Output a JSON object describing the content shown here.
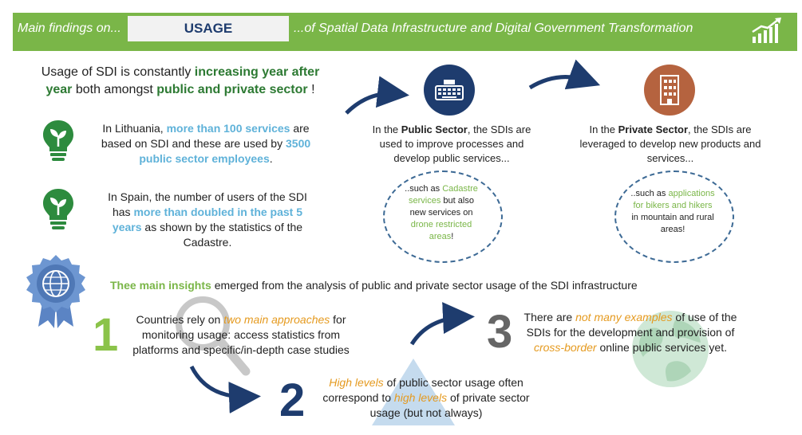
{
  "banner": {
    "prefix": "Main findings on...",
    "topic": "USAGE",
    "suffix": "...of Spatial Data Infrastructure and Digital Government Transformation",
    "icon": "bar-chart-growth-icon"
  },
  "intro": {
    "text_a": "Usage of SDI is constantly ",
    "highlight_a": "increasing year after year",
    "text_b": " both amongst ",
    "highlight_b": "public and private sector",
    "text_c": " !"
  },
  "facts": [
    {
      "icon": "lightbulb-plant-icon",
      "text_a": "In Lithuania, ",
      "highlight_a": "more than 100 services",
      "text_b": " are based on SDI and these are used by ",
      "highlight_b": "3500 public sector employees",
      "text_c": "."
    },
    {
      "icon": "lightbulb-plant-icon",
      "text_a": "In Spain, the number of users of the SDI has ",
      "highlight_a": "more than doubled in the past 5 years",
      "text_b": " as shown by the statistics of the Cadastre."
    }
  ],
  "sectors": {
    "public": {
      "icon": "keyboard-icon",
      "text_a": "In the ",
      "bold": "Public Sector",
      "text_b": ", the SDIs are used to improve processes and develop public services...",
      "bubble_a": "..such as ",
      "bubble_hl_a": "Cadastre services",
      "bubble_b": " but also new services on ",
      "bubble_hl_b": "drone restricted areas",
      "bubble_c": "!"
    },
    "private": {
      "icon": "building-icon",
      "text_a": "In the ",
      "bold": "Private Sector",
      "text_b": ", the SDIs are leveraged to develop new products and services...",
      "bubble_a": "..such as ",
      "bubble_hl": "applications for bikers and hikers",
      "bubble_b": " in mountain and rural areas!"
    }
  },
  "insights": {
    "badge_icon": "globe-award-badge-icon",
    "title_hl": "Thee main insights",
    "title_rest": " emerged from the analysis of public and private sector usage of the SDI infrastructure",
    "items": [
      {
        "number": "1",
        "text_a": "Countries rely on ",
        "highlight": "two main approaches",
        "text_b": " for monitoring usage: access statistics from platforms and specific/in-depth case studies"
      },
      {
        "number": "2",
        "highlight_a": "High levels",
        "text_a": " of public sector usage often correspond to ",
        "highlight_b": "high levels",
        "text_b": " of private sector usage (but not always)"
      },
      {
        "number": "3",
        "text_a": "There are ",
        "highlight_a": "not many examples",
        "text_b": " of use of the SDIs for the development and provision of ",
        "highlight_b": "cross-border",
        "text_c": " online public services yet."
      }
    ]
  },
  "colors": {
    "banner_green": "#7ab648",
    "dark_green": "#2d7a33",
    "light_blue": "#5fb2d9",
    "navy": "#1e3c6e",
    "orange": "#e59a1f",
    "brown": "#b5633f"
  }
}
